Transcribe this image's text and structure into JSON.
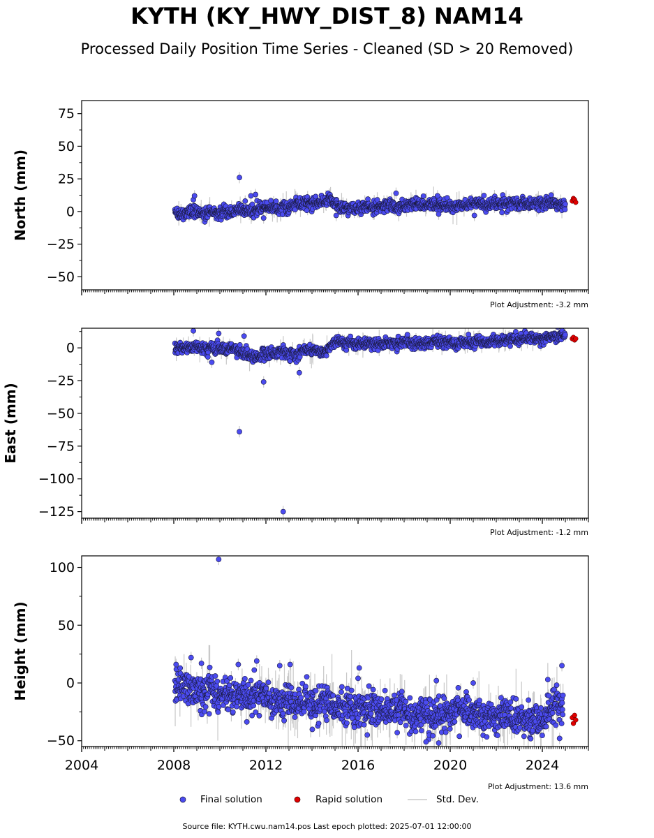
{
  "figure": {
    "title": "KYTH (KY_HWY_DIST_8) NAM14",
    "subtitle": "Processed Daily Position Time Series - Cleaned (SD > 20 Removed)",
    "source": "Source file: KYTH.cwu.nam14.pos  Last epoch plotted: 2025-07-01 12:00:00"
  },
  "legend": {
    "final": "Final solution",
    "rapid": "Rapid solution",
    "std": "Std. Dev."
  },
  "colors": {
    "final": "#4b4bf0",
    "final_edge": "#1a1a40",
    "rapid": "#e00000",
    "std": "#c8c8c8"
  },
  "chart_data": [
    {
      "type": "scatter",
      "ylabel": "North (mm)",
      "ylim": [
        -60,
        85
      ],
      "yticks": [
        75,
        50,
        25,
        0,
        -25,
        -50
      ],
      "xlim": [
        2004,
        2026
      ],
      "xticks": [
        2004,
        2008,
        2012,
        2016,
        2020,
        2024
      ],
      "adjustment": "Plot Adjustment: -3.2 mm",
      "trend": [
        [
          2008.05,
          -0.5
        ],
        [
          2010.5,
          -1
        ],
        [
          2012.5,
          3
        ],
        [
          2013.8,
          7
        ],
        [
          2014.9,
          7
        ],
        [
          2015.3,
          3
        ],
        [
          2018.5,
          4.5
        ],
        [
          2020.5,
          5.5
        ],
        [
          2023.5,
          6
        ],
        [
          2025.0,
          6.5
        ]
      ],
      "noise": 2.2,
      "outliers": [
        [
          2008.85,
          9
        ],
        [
          2008.9,
          12
        ],
        [
          2010.85,
          26
        ],
        [
          2011.1,
          8
        ],
        [
          2011.35,
          12
        ],
        [
          2011.55,
          13
        ],
        [
          2011.9,
          -5
        ],
        [
          2015.05,
          -3
        ],
        [
          2017.65,
          14
        ],
        [
          2019.45,
          12
        ],
        [
          2019.5,
          -2
        ],
        [
          2021.05,
          -3
        ]
      ],
      "rapid": [
        [
          2025.3,
          8
        ],
        [
          2025.35,
          10
        ],
        [
          2025.4,
          9
        ],
        [
          2025.45,
          7
        ]
      ]
    },
    {
      "type": "scatter",
      "ylabel": "East (mm)",
      "ylim": [
        -130,
        15
      ],
      "yticks": [
        0,
        -25,
        -50,
        -75,
        -100,
        -125
      ],
      "xlim": [
        2004,
        2026
      ],
      "xticks": [
        2004,
        2008,
        2012,
        2016,
        2020,
        2024
      ],
      "adjustment": "Plot Adjustment: -1.2 mm",
      "trend": [
        [
          2008.05,
          0
        ],
        [
          2010.0,
          0
        ],
        [
          2010.8,
          -2
        ],
        [
          2011.5,
          -6
        ],
        [
          2012.2,
          -4
        ],
        [
          2012.6,
          -3
        ],
        [
          2013.3,
          -6
        ],
        [
          2013.8,
          0
        ],
        [
          2014.5,
          -4
        ],
        [
          2014.9,
          2
        ],
        [
          2015.3,
          4
        ],
        [
          2018.0,
          3.5
        ],
        [
          2020.5,
          4.5
        ],
        [
          2023.0,
          6.5
        ],
        [
          2025.0,
          8
        ]
      ],
      "noise": 2.0,
      "outliers": [
        [
          2008.85,
          13
        ],
        [
          2009.65,
          -11
        ],
        [
          2009.95,
          11
        ],
        [
          2010.85,
          -64
        ],
        [
          2011.05,
          9
        ],
        [
          2011.9,
          -26
        ],
        [
          2012.75,
          -125
        ],
        [
          2013.45,
          -19
        ]
      ],
      "rapid": [
        [
          2025.3,
          7
        ],
        [
          2025.35,
          8
        ],
        [
          2025.4,
          6
        ],
        [
          2025.45,
          7
        ]
      ]
    },
    {
      "type": "scatter",
      "ylabel": "Height (mm)",
      "ylim": [
        -55,
        110
      ],
      "yticks": [
        100,
        50,
        0,
        -50
      ],
      "xlim": [
        2004,
        2026
      ],
      "xticks": [
        2004,
        2008,
        2012,
        2016,
        2020,
        2024
      ],
      "xticklabels": [
        "2004",
        "2008",
        "2012",
        "2016",
        "2020",
        "2024"
      ],
      "adjustment": "Plot Adjustment: 13.6 mm",
      "trend": [
        [
          2008.05,
          -5
        ],
        [
          2010.0,
          -8
        ],
        [
          2012.0,
          -14
        ],
        [
          2014.0,
          -20
        ],
        [
          2016.0,
          -20
        ],
        [
          2018.0,
          -24
        ],
        [
          2019.0,
          -30
        ],
        [
          2020.0,
          -28
        ],
        [
          2022.0,
          -28
        ],
        [
          2024.0,
          -30
        ],
        [
          2024.9,
          -18
        ]
      ],
      "noise": 7.0,
      "outliers": [
        [
          2009.95,
          107
        ],
        [
          2008.1,
          16
        ],
        [
          2008.75,
          22
        ],
        [
          2009.2,
          17
        ],
        [
          2010.8,
          16
        ],
        [
          2011.6,
          19
        ],
        [
          2012.6,
          15
        ],
        [
          2013.05,
          16
        ],
        [
          2016.05,
          13
        ],
        [
          2016.0,
          4
        ],
        [
          2019.4,
          2
        ],
        [
          2019.5,
          -52
        ],
        [
          2018.95,
          -51
        ],
        [
          2017.7,
          -43
        ],
        [
          2016.4,
          -45
        ],
        [
          2021.0,
          0
        ],
        [
          2024.85,
          15
        ],
        [
          2024.75,
          -48
        ]
      ],
      "rapid": [
        [
          2025.3,
          -30
        ],
        [
          2025.35,
          -35
        ],
        [
          2025.4,
          -28
        ],
        [
          2025.45,
          -32
        ]
      ]
    }
  ]
}
